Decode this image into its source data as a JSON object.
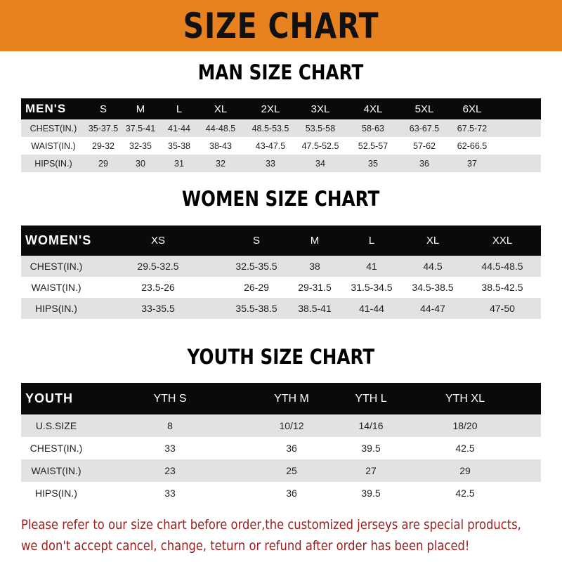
{
  "banner": {
    "title": "SIZE CHART",
    "color": "#e8821f"
  },
  "men": {
    "title": "MAN SIZE CHART",
    "header": [
      "MEN'S",
      "S",
      "M",
      "L",
      "XL",
      "2XL",
      "3XL",
      "4XL",
      "5XL",
      "6XL"
    ],
    "rows": [
      [
        "CHEST(IN.)",
        "35-37.5",
        "37.5-41",
        "41-44",
        "44-48.5",
        "48.5-53.5",
        "53.5-58",
        "58-63",
        "63-67.5",
        "67.5-72"
      ],
      [
        "WAIST(IN.)",
        "29-32",
        "32-35",
        "35-38",
        "38-43",
        "43-47.5",
        "47.5-52.5",
        "52.5-57",
        "57-62",
        "62-66.5"
      ],
      [
        "HIPS(IN.)",
        "29",
        "30",
        "31",
        "32",
        "33",
        "34",
        "35",
        "36",
        "37"
      ]
    ]
  },
  "women": {
    "title": "WOMEN SIZE CHART",
    "header": [
      "WOMEN'S",
      "XS",
      "S",
      "M",
      "L",
      "XL",
      "XXL"
    ],
    "rows": [
      [
        "CHEST(IN.)",
        "29.5-32.5",
        "32.5-35.5",
        "38",
        "41",
        "44.5",
        "44.5-48.5"
      ],
      [
        "WAIST(IN.)",
        "23.5-26",
        "26-29",
        "29-31.5",
        "31.5-34.5",
        "34.5-38.5",
        "38.5-42.5"
      ],
      [
        "HIPS(IN.)",
        "33-35.5",
        "35.5-38.5",
        "38.5-41",
        "41-44",
        "44-47",
        "47-50"
      ]
    ]
  },
  "youth": {
    "title": "YOUTH SIZE CHART",
    "header": [
      "YOUTH",
      "YTH S",
      "YTH M",
      "YTH L",
      "YTH XL"
    ],
    "rows": [
      [
        "U.S.SIZE",
        "8",
        "10/12",
        "14/16",
        "18/20"
      ],
      [
        "CHEST(IN.)",
        "33",
        "36",
        "39.5",
        "42.5"
      ],
      [
        "WAIST(IN.)",
        "23",
        "25",
        "27",
        "29"
      ],
      [
        "HIPS(IN.)",
        "33",
        "36",
        "39.5",
        "42.5"
      ]
    ]
  },
  "note": {
    "line1": "Please refer to our size chart before order,the customized jerseys are special products,",
    "line2": "we don't accept cancel, change, teturn or refund after order has been placed!",
    "color": "#9b1c1c"
  }
}
